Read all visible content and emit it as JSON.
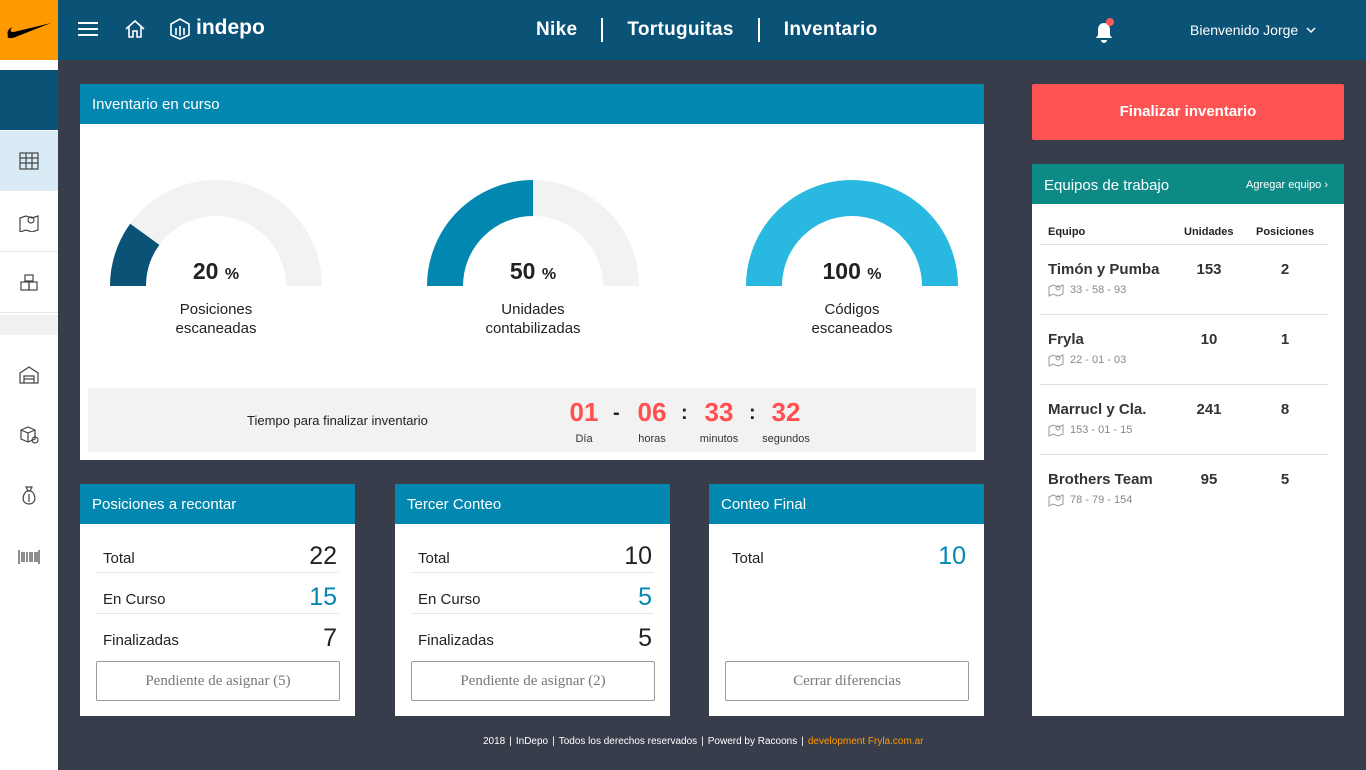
{
  "header": {
    "brand": "indepo",
    "breadcrumbs": [
      "Nike",
      "Tortuguitas",
      "Inventario"
    ],
    "user": "Bienvenido Jorge"
  },
  "sidebar": {
    "icons": [
      "map-grid-icon",
      "map-pin-icon",
      "boxes-icon",
      "warehouse-icon",
      "package-settings-icon",
      "money-bag-icon",
      "barcode-icon"
    ]
  },
  "inventory": {
    "title": "Inventario en curso",
    "gauges": [
      {
        "value": 20,
        "unit": "%",
        "label1": "Posiciones",
        "label2": "escaneadas",
        "color": "#0b5277"
      },
      {
        "value": 50,
        "unit": "%",
        "label1": "Unidades",
        "label2": "contabilizadas",
        "color": "#0288b0"
      },
      {
        "value": 100,
        "unit": "%",
        "label1": "Códigos",
        "label2": "escaneados",
        "color": "#29b9e0"
      }
    ],
    "timer": {
      "label": "Tiempo para finalizar inventario",
      "days": "01",
      "hours": "06",
      "minutes": "33",
      "seconds": "32",
      "days_label": "Día",
      "hours_label": "horas",
      "minutes_label": "minutos",
      "seconds_label": "segundos",
      "sep1": "-",
      "sep2": ":",
      "sep3": ":"
    }
  },
  "recontar": {
    "title": "Posiciones a recontar",
    "rows": [
      {
        "label": "Total",
        "value": "22"
      },
      {
        "label": "En Curso",
        "value": "15"
      },
      {
        "label": "Finalizadas",
        "value": "7"
      }
    ],
    "button": "Pendiente de asignar (5)"
  },
  "tercer": {
    "title": "Tercer Conteo",
    "rows": [
      {
        "label": "Total",
        "value": "10"
      },
      {
        "label": "En Curso",
        "value": "5"
      },
      {
        "label": "Finalizadas",
        "value": "5"
      }
    ],
    "button": "Pendiente de asignar (2)"
  },
  "final": {
    "title": "Conteo Final",
    "rows": [
      {
        "label": "Total",
        "value": "10"
      }
    ],
    "button": "Cerrar diferencias"
  },
  "finalizar_button": "Finalizar inventario",
  "teams": {
    "title": "Equipos de trabajo",
    "add": "Agregar equipo ›",
    "col_team": "Equipo",
    "col_units": "Unidades",
    "col_positions": "Posiciones",
    "rows": [
      {
        "name": "Timón y Pumba",
        "loc": "33 - 58 - 93",
        "units": "153",
        "positions": "2"
      },
      {
        "name": "Fryla",
        "loc": "22 - 01 - 03",
        "units": "10",
        "positions": "1"
      },
      {
        "name": "Marrucl y Cla.",
        "loc": "153 - 01 - 15",
        "units": "241",
        "positions": "8"
      },
      {
        "name": "Brothers Team",
        "loc": "78 - 79 - 154",
        "units": "95",
        "positions": "5"
      }
    ]
  },
  "footer": {
    "year": "2018",
    "company": "InDepo",
    "rights": "Todos los derechos reservados",
    "powered": "Powerd by Racoons",
    "dev": "development Fryla.com.ar"
  }
}
